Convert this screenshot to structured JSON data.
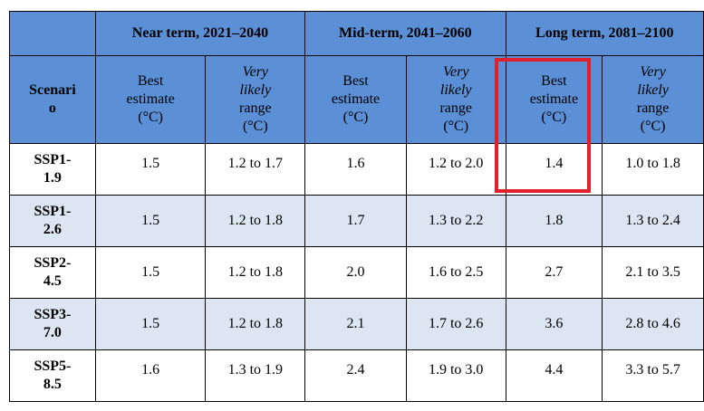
{
  "table": {
    "groups": [
      {
        "label": ""
      },
      {
        "label": "Near term, 2021–2040"
      },
      {
        "label": "Mid-term, 2041–2060"
      },
      {
        "label": "Long term, 2081–2100"
      }
    ],
    "scenario_header": [
      "Scenari",
      "o"
    ],
    "best_header": [
      "Best",
      "estimate",
      "(°C)"
    ],
    "very_likely_header": [
      "Very",
      "likely",
      "range",
      "(°C)"
    ],
    "rows": [
      {
        "scenario": [
          "SSP1-",
          "1.9"
        ],
        "cells": [
          "1.5",
          "1.2 to 1.7",
          "1.6",
          "1.2 to 2.0",
          "1.4",
          "1.0 to 1.8"
        ]
      },
      {
        "scenario": [
          "SSP1-",
          "2.6"
        ],
        "cells": [
          "1.5",
          "1.2 to 1.8",
          "1.7",
          "1.3 to 2.2",
          "1.8",
          "1.3 to 2.4"
        ]
      },
      {
        "scenario": [
          "SSP2-",
          "4.5"
        ],
        "cells": [
          "1.5",
          "1.2 to 1.8",
          "2.0",
          "1.6 to 2.5",
          "2.7",
          "2.1 to 3.5"
        ]
      },
      {
        "scenario": [
          "SSP3-",
          "7.0"
        ],
        "cells": [
          "1.5",
          "1.2 to 1.8",
          "2.1",
          "1.7 to 2.6",
          "3.6",
          "2.8 to 4.6"
        ]
      },
      {
        "scenario": [
          "SSP5-",
          "8.5"
        ],
        "cells": [
          "1.6",
          "1.3 to 1.9",
          "2.4",
          "1.9 to 3.0",
          "4.4",
          "3.3 to 5.7"
        ]
      }
    ]
  },
  "colors": {
    "header_bg": "#5b8fd6",
    "alt_row_bg": "#dce6f2",
    "highlight": "#e0202a"
  }
}
